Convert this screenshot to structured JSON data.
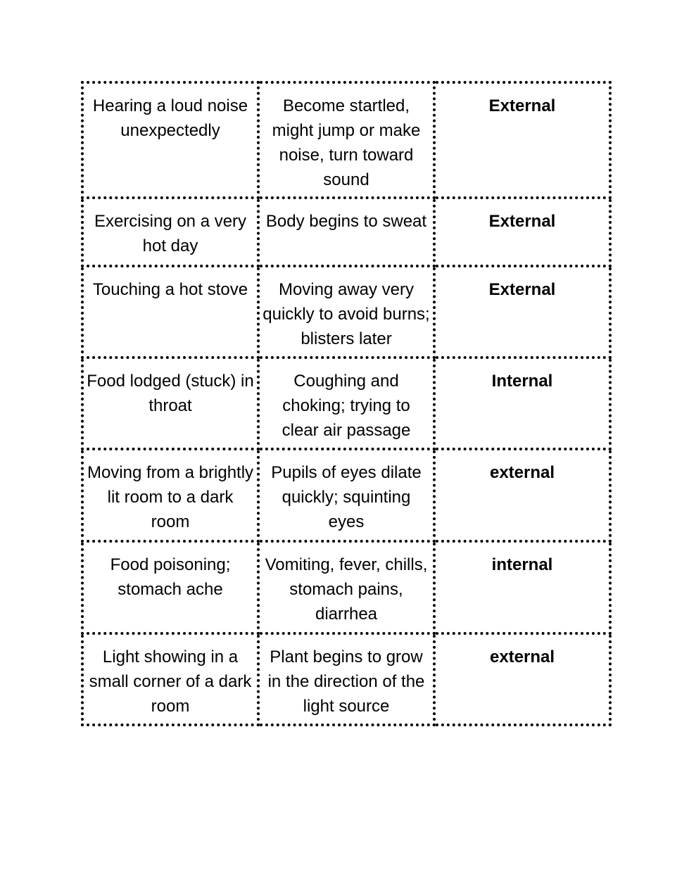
{
  "rows": [
    {
      "stimulus": "Hearing a loud noise unexpectedly",
      "response": "Become startled, might jump or make noise, turn toward sound",
      "type": "External"
    },
    {
      "stimulus": "Exercising on a very hot day",
      "response": "Body begins to sweat",
      "type": "External"
    },
    {
      "stimulus": "Touching a hot stove",
      "response": "Moving away very quickly to avoid burns; blisters later",
      "type": "External"
    },
    {
      "stimulus": "Food lodged (stuck) in throat",
      "response": "Coughing and choking; trying to clear air passage",
      "type": "Internal"
    },
    {
      "stimulus": "Moving from a brightly lit room to a dark room",
      "response": "Pupils of eyes dilate quickly; squinting eyes",
      "type": "external"
    },
    {
      "stimulus": "Food poisoning; stomach ache",
      "response": "Vomiting, fever, chills, stomach pains, diarrhea",
      "type": "internal"
    },
    {
      "stimulus": "Light showing in a small corner of a dark room",
      "response": "Plant begins to grow in the direction of the light source",
      "type": "external"
    }
  ]
}
